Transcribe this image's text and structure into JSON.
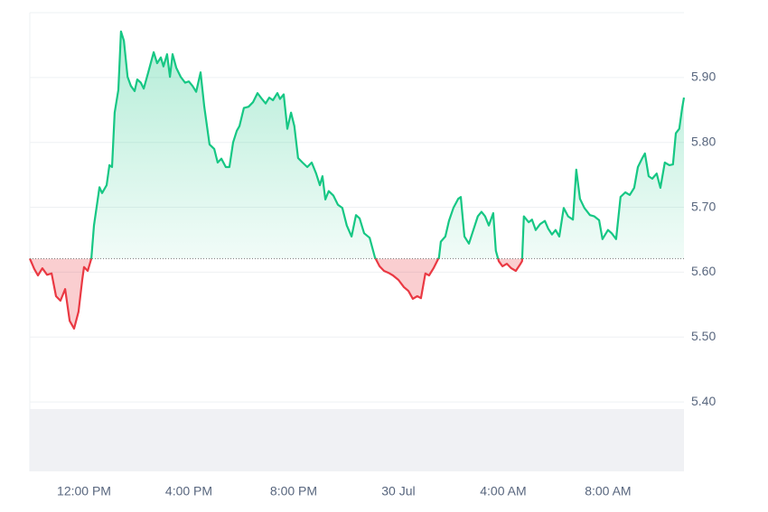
{
  "chart_data": {
    "type": "line",
    "line_color_above": "#16c784",
    "line_color_below": "#ea3943",
    "baseline": 5.621,
    "xlim": [
      -2.07,
      22.9
    ],
    "xticks": [
      {
        "value": 0,
        "label": "12:00 PM"
      },
      {
        "value": 4,
        "label": "4:00 PM"
      },
      {
        "value": 8,
        "label": "8:00 PM"
      },
      {
        "value": 12,
        "label": "30 Jul"
      },
      {
        "value": 16,
        "label": "4:00 AM"
      },
      {
        "value": 20,
        "label": "8:00 AM"
      }
    ],
    "ylim": [
      5.293,
      6.0
    ],
    "yticks": [
      {
        "value": 5.4,
        "label": "5.40"
      },
      {
        "value": 5.5,
        "label": "5.50"
      },
      {
        "value": 5.6,
        "label": "5.60"
      },
      {
        "value": 5.7,
        "label": "5.70"
      },
      {
        "value": 5.8,
        "label": "5.80"
      },
      {
        "value": 5.9,
        "label": "5.90"
      }
    ],
    "grid": true,
    "x": [
      -2.07,
      -1.9,
      -1.76,
      -1.59,
      -1.41,
      -1.24,
      -1.07,
      -0.9,
      -0.72,
      -0.55,
      -0.38,
      -0.21,
      -0.07,
      0,
      0.14,
      0.28,
      0.38,
      0.59,
      0.69,
      0.86,
      0.97,
      1.07,
      1.17,
      1.31,
      1.41,
      1.52,
      1.66,
      1.79,
      1.93,
      2.03,
      2.17,
      2.28,
      2.45,
      2.66,
      2.79,
      2.93,
      3.03,
      3.17,
      3.28,
      3.38,
      3.52,
      3.69,
      3.86,
      4.0,
      4.14,
      4.28,
      4.45,
      4.59,
      4.79,
      4.97,
      5.1,
      5.24,
      5.41,
      5.55,
      5.69,
      5.83,
      5.93,
      6.1,
      6.28,
      6.45,
      6.62,
      6.79,
      6.93,
      7.07,
      7.21,
      7.38,
      7.48,
      7.62,
      7.76,
      7.9,
      8.03,
      8.17,
      8.34,
      8.52,
      8.69,
      8.86,
      9.0,
      9.1,
      9.21,
      9.34,
      9.52,
      9.69,
      9.86,
      10.03,
      10.21,
      10.38,
      10.52,
      10.69,
      10.9,
      11.1,
      11.28,
      11.45,
      11.62,
      11.79,
      12.0,
      12.21,
      12.38,
      12.55,
      12.72,
      12.86,
      13.03,
      13.17,
      13.34,
      13.55,
      13.62,
      13.79,
      13.93,
      14.1,
      14.28,
      14.38,
      14.52,
      14.69,
      14.86,
      15.03,
      15.17,
      15.31,
      15.45,
      15.62,
      15.72,
      15.83,
      15.97,
      16.14,
      16.31,
      16.48,
      16.66,
      16.72,
      16.79,
      16.97,
      17.1,
      17.24,
      17.41,
      17.59,
      17.72,
      17.86,
      18.0,
      18.14,
      18.31,
      18.48,
      18.66,
      18.79,
      18.93,
      19.1,
      19.31,
      19.48,
      19.66,
      19.79,
      20.0,
      20.14,
      20.31,
      20.48,
      20.66,
      20.83,
      21.0,
      21.14,
      21.31,
      21.41,
      21.55,
      21.69,
      21.86,
      22.0,
      22.17,
      22.34,
      22.48,
      22.59,
      22.72,
      22.83,
      22.9
    ],
    "values": [
      5.621,
      5.605,
      5.595,
      5.606,
      5.596,
      5.598,
      5.563,
      5.556,
      5.574,
      5.525,
      5.513,
      5.539,
      5.588,
      5.608,
      5.602,
      5.621,
      5.672,
      5.731,
      5.722,
      5.734,
      5.765,
      5.762,
      5.846,
      5.881,
      5.971,
      5.957,
      5.901,
      5.887,
      5.879,
      5.897,
      5.892,
      5.883,
      5.908,
      5.939,
      5.922,
      5.931,
      5.917,
      5.936,
      5.901,
      5.936,
      5.915,
      5.901,
      5.892,
      5.894,
      5.887,
      5.878,
      5.908,
      5.855,
      5.797,
      5.79,
      5.769,
      5.775,
      5.762,
      5.762,
      5.8,
      5.818,
      5.825,
      5.853,
      5.855,
      5.862,
      5.876,
      5.867,
      5.86,
      5.869,
      5.865,
      5.876,
      5.867,
      5.874,
      5.821,
      5.846,
      5.825,
      5.776,
      5.769,
      5.762,
      5.769,
      5.752,
      5.734,
      5.748,
      5.712,
      5.725,
      5.718,
      5.704,
      5.699,
      5.672,
      5.655,
      5.688,
      5.683,
      5.66,
      5.653,
      5.623,
      5.609,
      5.602,
      5.599,
      5.595,
      5.588,
      5.577,
      5.571,
      5.559,
      5.563,
      5.56,
      5.598,
      5.595,
      5.606,
      5.623,
      5.647,
      5.655,
      5.679,
      5.699,
      5.713,
      5.716,
      5.655,
      5.644,
      5.665,
      5.686,
      5.693,
      5.686,
      5.672,
      5.691,
      5.633,
      5.617,
      5.609,
      5.613,
      5.606,
      5.602,
      5.613,
      5.617,
      5.686,
      5.677,
      5.681,
      5.665,
      5.674,
      5.679,
      5.667,
      5.658,
      5.665,
      5.655,
      5.699,
      5.686,
      5.681,
      5.758,
      5.713,
      5.699,
      5.688,
      5.686,
      5.68,
      5.651,
      5.665,
      5.66,
      5.651,
      5.716,
      5.723,
      5.719,
      5.73,
      5.762,
      5.776,
      5.783,
      5.748,
      5.744,
      5.752,
      5.73,
      5.769,
      5.765,
      5.766,
      5.814,
      5.821,
      5.853,
      5.869
    ]
  }
}
